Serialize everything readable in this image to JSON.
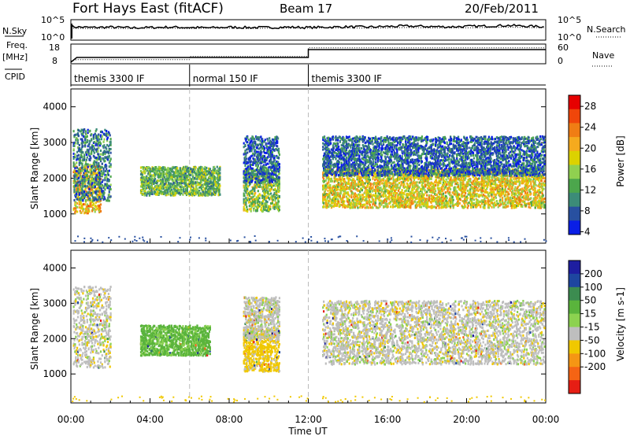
{
  "header": {
    "station": "Fort Hays East (fitACF)",
    "beam": "Beam 17",
    "date": "20/Feb/2011"
  },
  "labels": {
    "nsky": "N.Sky",
    "nsearch": "N.Search",
    "freq": "Freq.",
    "mhz": "[MHz]",
    "nave": "Nave",
    "cpid": "CPID",
    "time_axis": "Time UT"
  },
  "chart_data": [
    {
      "type": "line",
      "name": "noise-panel",
      "left_ticks": [
        "10^5",
        "10^0"
      ],
      "right_ticks": [
        "10^5",
        "10^0"
      ],
      "x": [
        0,
        1,
        2,
        3,
        4,
        5,
        6,
        7,
        8,
        9,
        10,
        11,
        12,
        13,
        14,
        15,
        16,
        17,
        18,
        19,
        20,
        21,
        22,
        23,
        24
      ],
      "series": [
        {
          "name": "N.Sky",
          "values": [
            3.4,
            3.2,
            3.3,
            3.1,
            3.2,
            3.3,
            3.2,
            3.1,
            3.3,
            3.2,
            3.2,
            3.3,
            3.2,
            3.3,
            3.4,
            3.3,
            3.5,
            3.6,
            3.5,
            3.4,
            3.5,
            3.6,
            3.8,
            3.6,
            3.4
          ]
        },
        {
          "name": "N.Search",
          "values": [
            3.0,
            2.9,
            3.0,
            2.9,
            3.0,
            3.0,
            2.9,
            3.0,
            3.0,
            2.9,
            3.0,
            3.0,
            3.0,
            3.1,
            3.1,
            3.0,
            3.1,
            3.2,
            3.1,
            3.1,
            3.1,
            3.2,
            3.3,
            3.2,
            3.1
          ]
        }
      ]
    },
    {
      "type": "line",
      "name": "freq-nave-panel",
      "left_ticks": [
        "18",
        "8"
      ],
      "right_ticks": [
        "60",
        "0"
      ],
      "series": [
        {
          "name": "Freq.",
          "points": [
            [
              0,
              8
            ],
            [
              0.3,
              11
            ],
            [
              6,
              11
            ],
            [
              12,
              11
            ],
            [
              12,
              16
            ],
            [
              24,
              16
            ]
          ]
        },
        {
          "name": "Nave",
          "points": [
            [
              0,
              4
            ],
            [
              0.3,
              10
            ],
            [
              6,
              10
            ],
            [
              6,
              22
            ],
            [
              12,
              22
            ],
            [
              12,
              55
            ],
            [
              24,
              55
            ]
          ]
        }
      ]
    },
    {
      "type": "table",
      "name": "cpid-strip",
      "segments": [
        {
          "start": 0,
          "end": 6,
          "label": "themis 3300 IF"
        },
        {
          "start": 6,
          "end": 12,
          "label": "normal 150 IF"
        },
        {
          "start": 12,
          "end": 24,
          "label": "themis 3300 IF"
        }
      ]
    },
    {
      "type": "heatmap",
      "name": "power-panel",
      "ylabel": "Slant Range [km]",
      "yticks": [
        1000,
        2000,
        3000,
        4000
      ],
      "ylim": [
        180,
        4500
      ],
      "xticks": [
        "00:00",
        "04:00",
        "08:00",
        "12:00",
        "16:00",
        "20:00",
        "00:00"
      ],
      "xlim": [
        0,
        24
      ],
      "colorbar_label": "Power [dB]",
      "colorbar_ticks": [
        28,
        24,
        20,
        16,
        12,
        8,
        4
      ],
      "colorbar_colors": [
        "#e60000",
        "#f0460a",
        "#f07d14",
        "#f5aa1e",
        "#dcd200",
        "#90d050",
        "#4ca64c",
        "#3c8c78",
        "#2850a0",
        "#0a1ee6"
      ],
      "regions": [
        {
          "t0": 0.1,
          "t1": 1.5,
          "r0": 1050,
          "r1": 2400,
          "level": 20
        },
        {
          "t0": 0.1,
          "t1": 2.0,
          "r0": 1400,
          "r1": 3400,
          "level": 8
        },
        {
          "t0": 3.5,
          "t1": 7.5,
          "r0": 1550,
          "r1": 2350,
          "level": 12
        },
        {
          "t0": 8.7,
          "t1": 10.5,
          "r0": 1100,
          "r1": 2300,
          "level": 14
        },
        {
          "t0": 8.7,
          "t1": 10.5,
          "r0": 1900,
          "r1": 3200,
          "level": 6
        },
        {
          "t0": 12.7,
          "t1": 23.9,
          "r0": 1200,
          "r1": 2300,
          "level": 18
        },
        {
          "t0": 12.7,
          "t1": 23.9,
          "r0": 2100,
          "r1": 3200,
          "level": 6
        }
      ]
    },
    {
      "type": "heatmap",
      "name": "velocity-panel",
      "ylabel": "Slant Range [km]",
      "yticks": [
        1000,
        2000,
        3000,
        4000
      ],
      "ylim": [
        180,
        4500
      ],
      "xticks": [
        "00:00",
        "04:00",
        "08:00",
        "12:00",
        "16:00",
        "20:00",
        "00:00"
      ],
      "xlim": [
        0,
        24
      ],
      "colorbar_label": "Velocity [m s-1]",
      "colorbar_ticks": [
        "200",
        "100",
        "50",
        "15",
        "-15",
        "-50",
        "-100",
        "-200"
      ],
      "colorbar_colors": [
        "#1e1ea0",
        "#1e46a0",
        "#3c8c50",
        "#5ab43c",
        "#8cd250",
        "#bebebe",
        "#f0c800",
        "#f59614",
        "#f56414",
        "#e61e14"
      ],
      "regions": [
        {
          "t0": 0.1,
          "t1": 2.0,
          "r0": 1200,
          "r1": 3500,
          "velocity": 0
        },
        {
          "t0": 3.5,
          "t1": 7.0,
          "r0": 1550,
          "r1": 2400,
          "velocity": 40
        },
        {
          "t0": 8.7,
          "t1": 10.5,
          "r0": 1100,
          "r1": 2300,
          "velocity": -30
        },
        {
          "t0": 8.7,
          "t1": 10.5,
          "r0": 2000,
          "r1": 3200,
          "velocity": 0
        },
        {
          "t0": 12.7,
          "t1": 23.9,
          "r0": 1300,
          "r1": 3100,
          "velocity": 0
        }
      ]
    }
  ]
}
